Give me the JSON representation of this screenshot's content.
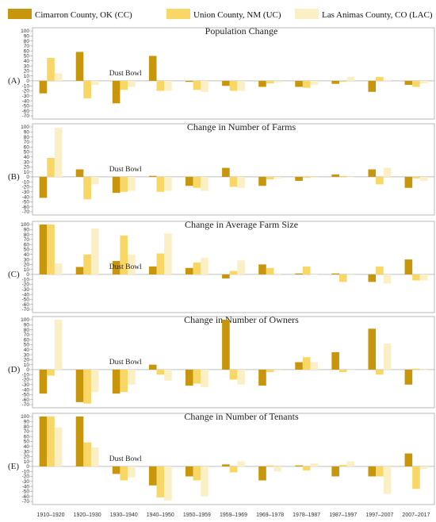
{
  "colors": {
    "cc": "#c8960c",
    "uc": "#f9d766",
    "lac": "#fbefc6",
    "frame": "#a9a9a9",
    "grid": "#d8d8d8"
  },
  "legend": [
    {
      "key": "cc",
      "label": "Cimarron County, OK (CC)"
    },
    {
      "key": "uc",
      "label": "Union County, NM (UC)"
    },
    {
      "key": "lac",
      "label": "Las Animas County, CO (LAC)"
    }
  ],
  "chart_data": {
    "type": "bar",
    "categories": [
      "1910–1920",
      "1920–1930",
      "1930–1940",
      "1940–1950",
      "1950–1959",
      "1959–1969",
      "1969–1978",
      "1978–1987",
      "1987–1997",
      "1997–2007",
      "2007–2017"
    ],
    "ylim": [
      -70,
      100
    ],
    "yticks": [
      100,
      90,
      80,
      70,
      60,
      50,
      40,
      30,
      20,
      10,
      0,
      -10,
      -20,
      -30,
      -40,
      -50,
      -60,
      -70
    ],
    "annotation": "Dust Bowl",
    "grid": true,
    "legend_position": "top",
    "panels": [
      {
        "label": "(A)",
        "title": "Population Change",
        "series": [
          {
            "name": "Cimarron County, OK (CC)",
            "values": [
              -25,
              58,
              -45,
              50,
              -2,
              -10,
              -12,
              -12,
              -6,
              -22,
              -8
            ]
          },
          {
            "name": "Union County, NM (UC)",
            "values": [
              46,
              -35,
              -18,
              -20,
              -18,
              -20,
              -5,
              -14,
              -2,
              8,
              -12
            ]
          },
          {
            "name": "Las Animas County, CO (LAC)",
            "values": [
              15,
              -8,
              -12,
              -20,
              -22,
              -20,
              -3,
              -8,
              8,
              2,
              -5
            ]
          }
        ]
      },
      {
        "label": "(B)",
        "title": "Change in Number of Farms",
        "series": [
          {
            "name": "Cimarron County, OK (CC)",
            "values": [
              -42,
              15,
              -32,
              2,
              -18,
              18,
              -18,
              -8,
              5,
              15,
              -22
            ]
          },
          {
            "name": "Union County, NM (UC)",
            "values": [
              38,
              -45,
              -30,
              -30,
              -22,
              -20,
              -5,
              -2,
              2,
              -15,
              -3
            ]
          },
          {
            "name": "Las Animas County, CO (LAC)",
            "values": [
              98,
              -15,
              -28,
              -28,
              -28,
              -22,
              -3,
              -2,
              0,
              18,
              -8
            ]
          }
        ]
      },
      {
        "label": "(C)",
        "title": "Change in Average Farm Size",
        "series": [
          {
            "name": "Cimarron County, OK (CC)",
            "values": [
              100,
              15,
              27,
              16,
              13,
              -8,
              20,
              2,
              2,
              -15,
              30
            ]
          },
          {
            "name": "Union County, NM (UC)",
            "values": [
              100,
              40,
              78,
              42,
              24,
              7,
              13,
              16,
              -15,
              16,
              -12
            ]
          },
          {
            "name": "Las Animas County, CO (LAC)",
            "values": [
              22,
              92,
              40,
              82,
              33,
              28,
              2,
              0,
              0,
              -18,
              -12
            ]
          }
        ]
      },
      {
        "label": "(D)",
        "title": "Change in Number of Owners",
        "series": [
          {
            "name": "Cimarron County, OK (CC)",
            "values": [
              -48,
              -65,
              -48,
              10,
              -32,
              100,
              -32,
              15,
              35,
              82,
              -30
            ]
          },
          {
            "name": "Union County, NM (UC)",
            "values": [
              -12,
              -68,
              -45,
              -10,
              -28,
              -20,
              -5,
              25,
              -5,
              -10,
              2
            ]
          },
          {
            "name": "Las Animas County, CO (LAC)",
            "values": [
              100,
              -45,
              -30,
              -22,
              -35,
              -30,
              -2,
              15,
              0,
              52,
              0
            ]
          }
        ]
      },
      {
        "label": "(E)",
        "title": "Change in Number of Tenants",
        "series": [
          {
            "name": "Cimarron County, OK (CC)",
            "values": [
              100,
              100,
              -15,
              -38,
              -20,
              4,
              -28,
              2,
              -20,
              -20,
              26
            ]
          },
          {
            "name": "Union County, NM (UC)",
            "values": [
              100,
              48,
              -28,
              -62,
              -28,
              -12,
              2,
              -8,
              3,
              -20,
              -45
            ]
          },
          {
            "name": "Las Animas County, CO (LAC)",
            "values": [
              78,
              38,
              -22,
              -68,
              -60,
              10,
              -10,
              6,
              10,
              -55,
              -5
            ]
          }
        ]
      }
    ]
  }
}
